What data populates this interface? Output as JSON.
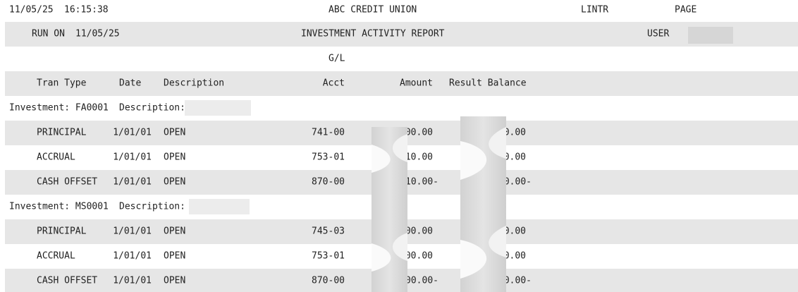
{
  "header": {
    "date": "11/05/25",
    "time": "16:15:38",
    "institution": "ABC CREDIT UNION",
    "code": "LINTR",
    "page_label": "PAGE",
    "run_on_label": "RUN ON",
    "run_date": "11/05/25",
    "report_title": "INVESTMENT ACTIVITY REPORT",
    "user_label": "USER"
  },
  "columns": {
    "gl": "G/L",
    "tran_type": "Tran Type",
    "date": "Date",
    "description": "Description",
    "acct": "Acct",
    "amount": "Amount",
    "result_balance": "Result Balance"
  },
  "investments": [
    {
      "label": "Investment: FA0001",
      "description_label": "Description:",
      "rows": [
        {
          "tran_type": "PRINCIPAL",
          "date": "1/01/01",
          "description": "OPEN",
          "acct": "741-00",
          "amount": "00.00",
          "result_balance": "0.00"
        },
        {
          "tran_type": "ACCRUAL",
          "date": "1/01/01",
          "description": "OPEN",
          "acct": "753-01",
          "amount": "10.00",
          "result_balance": "0.00"
        },
        {
          "tran_type": "CASH OFFSET",
          "date": "1/01/01",
          "description": "OPEN",
          "acct": "870-00",
          "amount": "10.00-",
          "result_balance": "0.00-"
        }
      ]
    },
    {
      "label": "Investment: MS0001",
      "description_label": "Description:",
      "rows": [
        {
          "tran_type": "PRINCIPAL",
          "date": "1/01/01",
          "description": "OPEN",
          "acct": "745-03",
          "amount": "00.00",
          "result_balance": "0.00"
        },
        {
          "tran_type": "ACCRUAL",
          "date": "1/01/01",
          "description": "OPEN",
          "acct": "753-01",
          "amount": "00.00",
          "result_balance": "0.00"
        },
        {
          "tran_type": "CASH OFFSET",
          "date": "1/01/01",
          "description": "OPEN",
          "acct": "870-00",
          "amount": "00.00-",
          "result_balance": "0.00-"
        }
      ]
    }
  ]
}
